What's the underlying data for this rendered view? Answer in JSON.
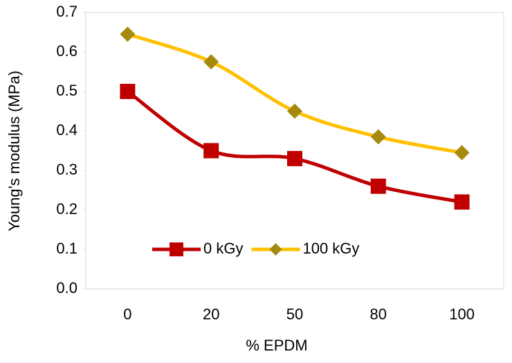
{
  "chart_data": {
    "type": "line",
    "x_label": "% EPDM",
    "y_label": "Young's modulus (MPa)",
    "categories": [
      "0",
      "20",
      "50",
      "80",
      "100"
    ],
    "series": [
      {
        "name": "0 kGy",
        "color": "#c00000",
        "marker": "square",
        "values": [
          0.5,
          0.35,
          0.33,
          0.26,
          0.22
        ]
      },
      {
        "name": "100 kGy",
        "color": "#ffc000",
        "marker_color": "#a6890f",
        "marker": "diamond",
        "values": [
          0.645,
          0.575,
          0.45,
          0.385,
          0.345
        ]
      }
    ],
    "ylim": [
      0,
      0.7
    ],
    "yticks": [
      {
        "value": 0,
        "label": "0.0"
      },
      0.1,
      0.2,
      0.3,
      0.4,
      0.5,
      0.6,
      0.7
    ],
    "grid": false,
    "legend": "bottom-left"
  }
}
